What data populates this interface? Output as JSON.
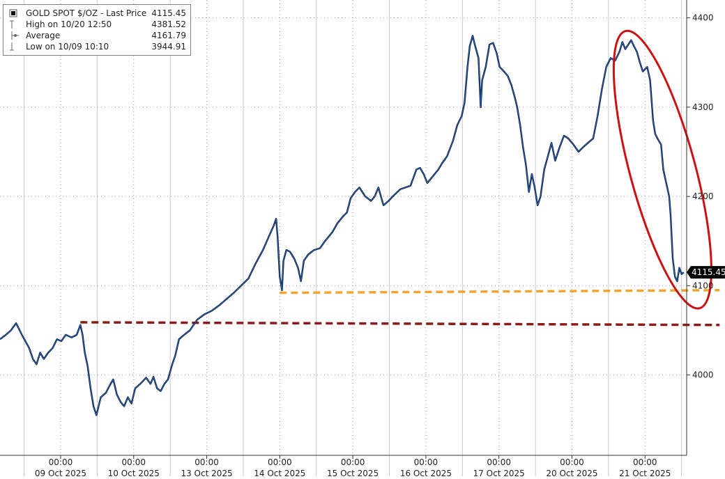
{
  "chart_data": {
    "type": "line",
    "title": "GOLD SPOT $/OZ",
    "legend": {
      "placement": "top-left",
      "entries": [
        {
          "label": "GOLD SPOT $/OZ - Last Price",
          "value": "4115.45",
          "icon": "candlestick-square-icon"
        },
        {
          "label": "High on 10/20 12:50",
          "value": "4381.52",
          "icon": "high-marker-icon"
        },
        {
          "label": "Average",
          "value": "4161.79",
          "icon": "average-marker-icon"
        },
        {
          "label": "Low on 10/09 10:10",
          "value": "3944.91",
          "icon": "low-marker-icon"
        }
      ]
    },
    "last_price_label": "4115.45",
    "y_axis": {
      "position": "right",
      "range": [
        3910,
        4420
      ],
      "ticks": [
        4000,
        4100,
        4200,
        4300,
        4400
      ],
      "tick_labels": [
        "4000",
        "4100",
        "4200",
        "4300",
        "4400"
      ]
    },
    "x_axis": {
      "range": [
        0,
        9.4
      ],
      "tick_time": "00:00",
      "days": [
        {
          "x": 0.83,
          "time": "00:00",
          "date": "09 Oct 2025"
        },
        {
          "x": 1.83,
          "time": "00:00",
          "date": "10 Oct 2025"
        },
        {
          "x": 2.83,
          "time": "00:00",
          "date": "13 Oct 2025"
        },
        {
          "x": 3.83,
          "time": "00:00",
          "date": "14 Oct 2025"
        },
        {
          "x": 4.83,
          "time": "00:00",
          "date": "15 Oct 2025"
        },
        {
          "x": 5.83,
          "time": "00:00",
          "date": "16 Oct 2025"
        },
        {
          "x": 6.83,
          "time": "00:00",
          "date": "17 Oct 2025"
        },
        {
          "x": 7.83,
          "time": "00:00",
          "date": "20 Oct 2025"
        },
        {
          "x": 8.83,
          "time": "00:00",
          "date": "21 Oct 2025"
        }
      ]
    },
    "grid": true,
    "series": [
      {
        "name": "GOLD SPOT $/OZ - Last Price",
        "color": "#1f5fbf",
        "points": [
          [
            0.0,
            4040
          ],
          [
            0.08,
            4045
          ],
          [
            0.15,
            4050
          ],
          [
            0.22,
            4058
          ],
          [
            0.3,
            4045
          ],
          [
            0.4,
            4030
          ],
          [
            0.45,
            4018
          ],
          [
            0.5,
            4012
          ],
          [
            0.55,
            4025
          ],
          [
            0.6,
            4018
          ],
          [
            0.66,
            4025
          ],
          [
            0.72,
            4030
          ],
          [
            0.78,
            4040
          ],
          [
            0.84,
            4038
          ],
          [
            0.9,
            4045
          ],
          [
            0.98,
            4042
          ],
          [
            1.05,
            4045
          ],
          [
            1.1,
            4056
          ],
          [
            1.13,
            4045
          ],
          [
            1.16,
            4025
          ],
          [
            1.2,
            4010
          ],
          [
            1.24,
            3985
          ],
          [
            1.28,
            3965
          ],
          [
            1.32,
            3955
          ],
          [
            1.38,
            3975
          ],
          [
            1.45,
            3980
          ],
          [
            1.5,
            3988
          ],
          [
            1.55,
            3995
          ],
          [
            1.6,
            3978
          ],
          [
            1.65,
            3970
          ],
          [
            1.7,
            3965
          ],
          [
            1.75,
            3975
          ],
          [
            1.8,
            3968
          ],
          [
            1.85,
            3985
          ],
          [
            1.92,
            3990
          ],
          [
            2.0,
            3997
          ],
          [
            2.06,
            3990
          ],
          [
            2.1,
            3998
          ],
          [
            2.15,
            3985
          ],
          [
            2.2,
            3982
          ],
          [
            2.25,
            3990
          ],
          [
            2.3,
            3995
          ],
          [
            2.35,
            4010
          ],
          [
            2.4,
            4022
          ],
          [
            2.45,
            4040
          ],
          [
            2.52,
            4045
          ],
          [
            2.6,
            4050
          ],
          [
            2.7,
            4062
          ],
          [
            2.8,
            4068
          ],
          [
            2.9,
            4072
          ],
          [
            3.0,
            4078
          ],
          [
            3.1,
            4085
          ],
          [
            3.2,
            4092
          ],
          [
            3.3,
            4100
          ],
          [
            3.4,
            4108
          ],
          [
            3.5,
            4125
          ],
          [
            3.6,
            4140
          ],
          [
            3.68,
            4155
          ],
          [
            3.75,
            4168
          ],
          [
            3.78,
            4175
          ],
          [
            3.8,
            4155
          ],
          [
            3.83,
            4110
          ],
          [
            3.86,
            4095
          ],
          [
            3.88,
            4128
          ],
          [
            3.92,
            4140
          ],
          [
            3.97,
            4138
          ],
          [
            4.03,
            4130
          ],
          [
            4.08,
            4120
          ],
          [
            4.12,
            4105
          ],
          [
            4.16,
            4128
          ],
          [
            4.22,
            4135
          ],
          [
            4.3,
            4140
          ],
          [
            4.38,
            4142
          ],
          [
            4.45,
            4150
          ],
          [
            4.55,
            4160
          ],
          [
            4.62,
            4170
          ],
          [
            4.7,
            4178
          ],
          [
            4.75,
            4182
          ],
          [
            4.8,
            4198
          ],
          [
            4.86,
            4205
          ],
          [
            4.92,
            4210
          ],
          [
            5.0,
            4200
          ],
          [
            5.08,
            4195
          ],
          [
            5.13,
            4200
          ],
          [
            5.18,
            4210
          ],
          [
            5.25,
            4190
          ],
          [
            5.32,
            4195
          ],
          [
            5.4,
            4202
          ],
          [
            5.48,
            4208
          ],
          [
            5.55,
            4210
          ],
          [
            5.62,
            4212
          ],
          [
            5.7,
            4230
          ],
          [
            5.75,
            4232
          ],
          [
            5.8,
            4225
          ],
          [
            5.85,
            4215
          ],
          [
            5.9,
            4220
          ],
          [
            6.0,
            4230
          ],
          [
            6.05,
            4237
          ],
          [
            6.12,
            4245
          ],
          [
            6.2,
            4262
          ],
          [
            6.26,
            4280
          ],
          [
            6.32,
            4290
          ],
          [
            6.36,
            4305
          ],
          [
            6.4,
            4345
          ],
          [
            6.43,
            4368
          ],
          [
            6.47,
            4380
          ],
          [
            6.5,
            4370
          ],
          [
            6.55,
            4355
          ],
          [
            6.58,
            4300
          ],
          [
            6.6,
            4330
          ],
          [
            6.65,
            4345
          ],
          [
            6.7,
            4370
          ],
          [
            6.75,
            4372
          ],
          [
            6.8,
            4360
          ],
          [
            6.84,
            4345
          ],
          [
            6.9,
            4340
          ],
          [
            6.95,
            4335
          ],
          [
            7.0,
            4325
          ],
          [
            7.05,
            4310
          ],
          [
            7.08,
            4300
          ],
          [
            7.12,
            4280
          ],
          [
            7.16,
            4255
          ],
          [
            7.2,
            4235
          ],
          [
            7.24,
            4205
          ],
          [
            7.28,
            4225
          ],
          [
            7.32,
            4210
          ],
          [
            7.36,
            4190
          ],
          [
            7.4,
            4200
          ],
          [
            7.45,
            4230
          ],
          [
            7.5,
            4245
          ],
          [
            7.55,
            4260
          ],
          [
            7.6,
            4240
          ],
          [
            7.66,
            4255
          ],
          [
            7.72,
            4268
          ],
          [
            7.78,
            4265
          ],
          [
            7.85,
            4258
          ],
          [
            7.92,
            4250
          ],
          [
            7.98,
            4255
          ],
          [
            8.05,
            4260
          ],
          [
            8.12,
            4265
          ],
          [
            8.18,
            4290
          ],
          [
            8.24,
            4320
          ],
          [
            8.3,
            4345
          ],
          [
            8.36,
            4355
          ],
          [
            8.42,
            4352
          ],
          [
            8.48,
            4362
          ],
          [
            8.52,
            4373
          ],
          [
            8.56,
            4365
          ],
          [
            8.6,
            4370
          ],
          [
            8.64,
            4375
          ],
          [
            8.68,
            4368
          ],
          [
            8.72,
            4362
          ],
          [
            8.76,
            4350
          ],
          [
            8.8,
            4340
          ],
          [
            8.86,
            4345
          ],
          [
            8.9,
            4330
          ],
          [
            8.94,
            4285
          ],
          [
            8.97,
            4270
          ],
          [
            9.0,
            4265
          ],
          [
            9.05,
            4258
          ],
          [
            9.08,
            4230
          ],
          [
            9.12,
            4215
          ],
          [
            9.16,
            4200
          ],
          [
            9.18,
            4180
          ],
          [
            9.21,
            4130
          ],
          [
            9.24,
            4110
          ],
          [
            9.27,
            4105
          ],
          [
            9.3,
            4120
          ],
          [
            9.33,
            4113
          ],
          [
            9.36,
            4115
          ]
        ]
      },
      {
        "name": "",
        "style": "dashed",
        "color": "#f0a530",
        "points": [
          [
            3.83,
            4092
          ],
          [
            9.85,
            4095
          ]
        ]
      },
      {
        "name": "",
        "style": "dashed",
        "color": "#8b1a1a",
        "points": [
          [
            1.1,
            4059
          ],
          [
            9.85,
            4056
          ]
        ]
      }
    ],
    "annotations": [
      {
        "type": "ellipse",
        "color": "#cc1111",
        "center": [
          9.07,
          4230
        ],
        "note": ""
      }
    ]
  }
}
